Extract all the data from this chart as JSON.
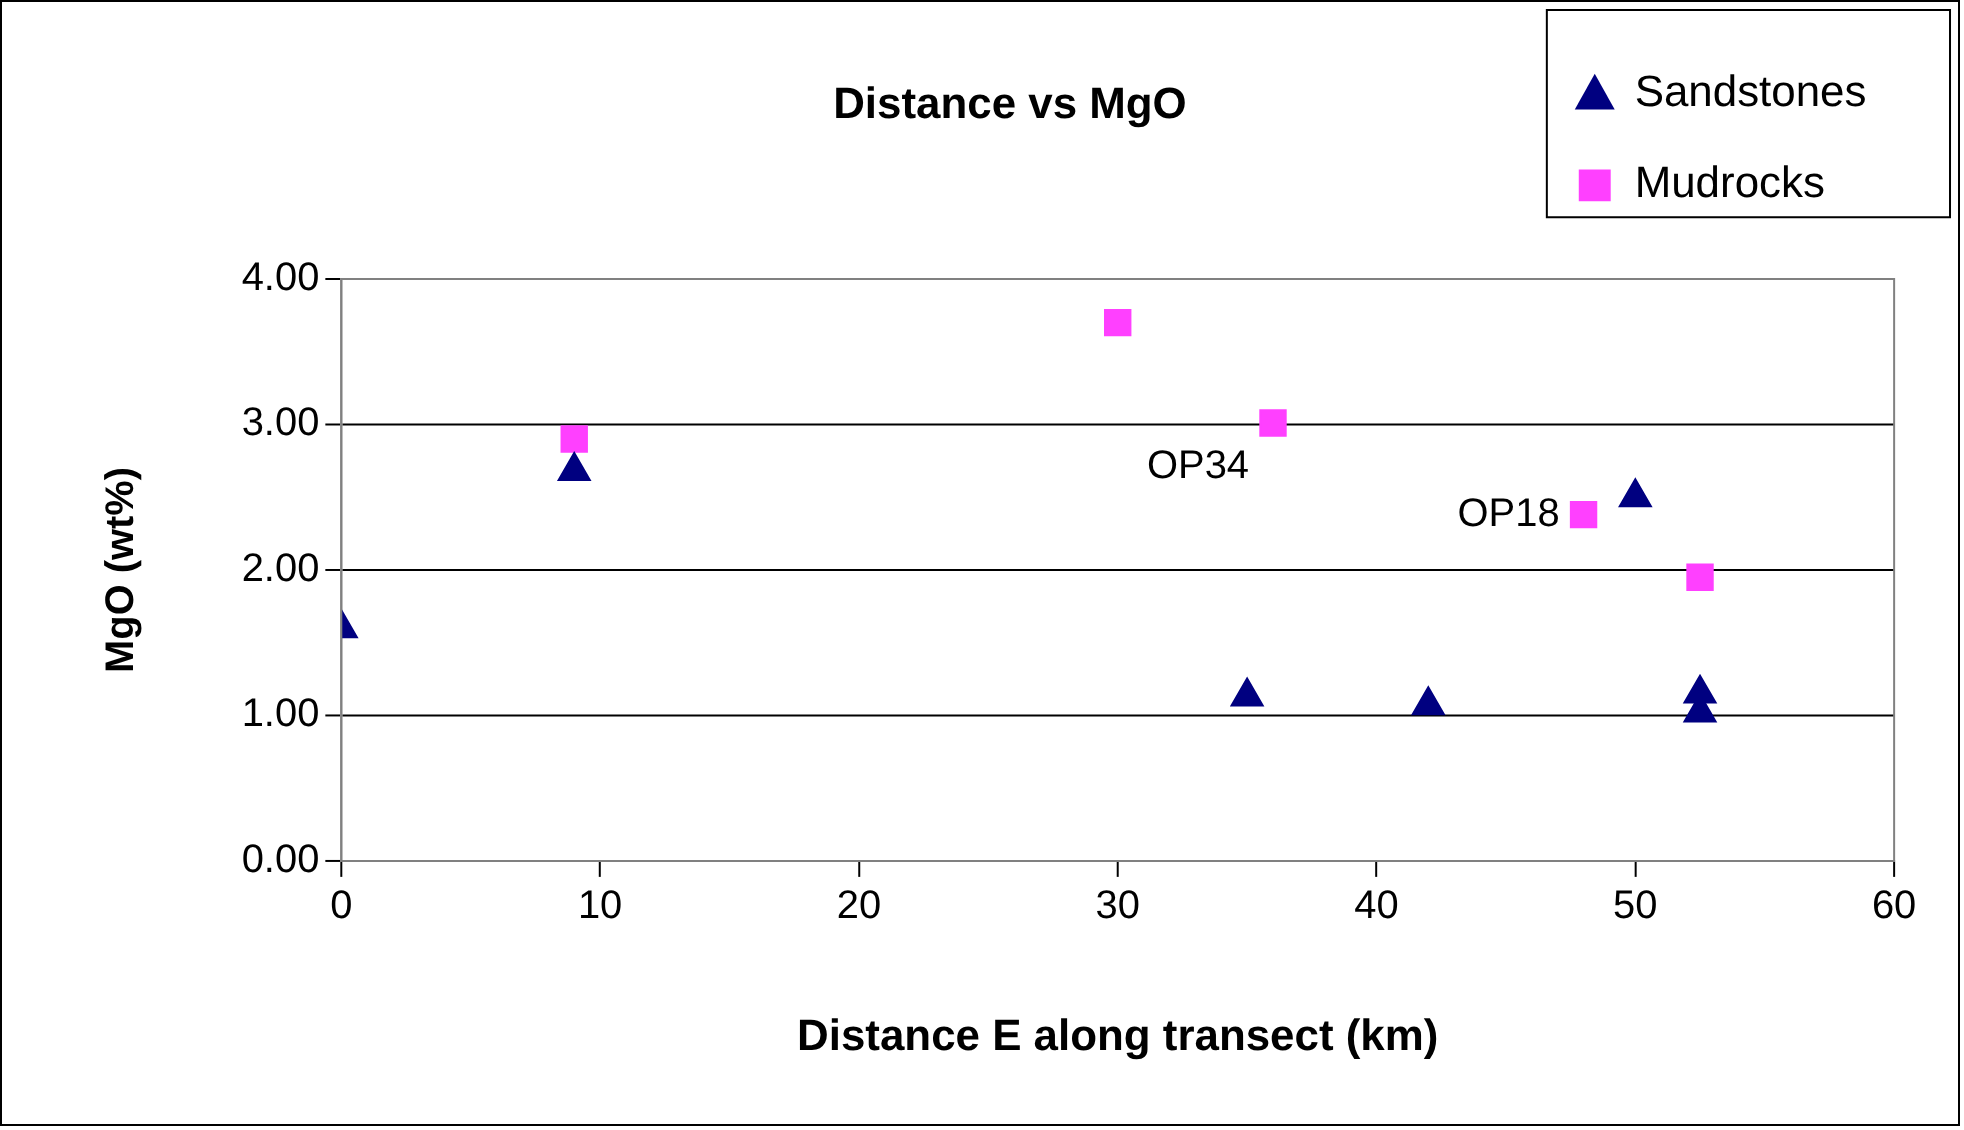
{
  "chart_data": {
    "type": "scatter",
    "title": "Distance vs MgO",
    "xlabel": "Distance E along transect (km)",
    "ylabel": "MgO (wt%)",
    "series": [
      {
        "name": "Sandstones",
        "color": "#000080",
        "marker": "triangle",
        "x": [
          0,
          9,
          35,
          42,
          50,
          52.5,
          52.5
        ],
        "values": [
          1.6,
          2.68,
          1.13,
          1.07,
          2.5,
          1.15,
          1.02
        ]
      },
      {
        "name": "Mudrocks",
        "color": "#ff40ff",
        "marker": "square",
        "x": [
          9,
          30,
          36,
          48,
          52.5
        ],
        "values": [
          2.9,
          3.7,
          3.01,
          2.38,
          1.95
        ]
      }
    ],
    "xlim": [
      0,
      60
    ],
    "xticks": [
      0,
      10,
      20,
      30,
      40,
      50,
      60
    ],
    "ylim": [
      0,
      4
    ],
    "yticks": [
      {
        "value": 0,
        "label": "0.00"
      },
      {
        "value": 1,
        "label": "1.00"
      },
      {
        "value": 2,
        "label": "2.00"
      },
      {
        "value": 3,
        "label": "3.00"
      },
      {
        "value": 4,
        "label": "4.00"
      }
    ],
    "grid": "y",
    "legend": "top right",
    "annotations": [
      {
        "text": "OP34",
        "x": 36,
        "y": 3.01
      },
      {
        "text": "OP18",
        "x": 48,
        "y": 2.38
      }
    ]
  }
}
